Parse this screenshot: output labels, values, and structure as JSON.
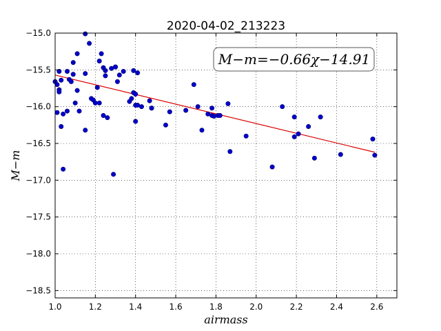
{
  "chart_data": {
    "type": "scatter",
    "title": "2020-04-02_213223",
    "xlabel": "airmass",
    "ylabel": "M−m",
    "xlim": [
      1.0,
      2.7
    ],
    "ylim": [
      -15.0,
      -18.6
    ],
    "y_inverted": true,
    "grid": true,
    "x_ticks": [
      "1.0",
      "1.2",
      "1.4",
      "1.6",
      "1.8",
      "2.0",
      "2.2",
      "2.4",
      "2.6"
    ],
    "y_ticks": [
      "−15.0",
      "−15.5",
      "−16.0",
      "−16.5",
      "−17.0",
      "−17.5",
      "−18.0",
      "−18.5"
    ],
    "annotation": "M−m=−0.66χ−14.91",
    "point_color": "#0000cc",
    "fit_color": "#dd0000",
    "fit": {
      "slope": -0.66,
      "intercept": -14.91,
      "x_range": [
        1.0,
        2.59
      ]
    },
    "points": [
      [
        1.0,
        -15.66
      ],
      [
        1.01,
        -15.7
      ],
      [
        1.02,
        -15.52
      ],
      [
        1.02,
        -15.77
      ],
      [
        1.02,
        -15.8
      ],
      [
        1.01,
        -16.08
      ],
      [
        1.03,
        -16.27
      ],
      [
        1.03,
        -15.64
      ],
      [
        1.04,
        -16.1
      ],
      [
        1.04,
        -16.85
      ],
      [
        1.06,
        -15.52
      ],
      [
        1.06,
        -16.06
      ],
      [
        1.07,
        -15.63
      ],
      [
        1.08,
        -15.66
      ],
      [
        1.09,
        -15.56
      ],
      [
        1.09,
        -15.4
      ],
      [
        1.1,
        -15.95
      ],
      [
        1.11,
        -15.78
      ],
      [
        1.11,
        -15.28
      ],
      [
        1.12,
        -16.06
      ],
      [
        1.15,
        -15.01
      ],
      [
        1.15,
        -15.55
      ],
      [
        1.15,
        -16.32
      ],
      [
        1.17,
        -15.14
      ],
      [
        1.18,
        -15.89
      ],
      [
        1.19,
        -15.91
      ],
      [
        1.2,
        -15.95
      ],
      [
        1.21,
        -15.74
      ],
      [
        1.22,
        -15.38
      ],
      [
        1.22,
        -15.95
      ],
      [
        1.23,
        -15.28
      ],
      [
        1.24,
        -15.47
      ],
      [
        1.25,
        -15.51
      ],
      [
        1.25,
        -15.58
      ],
      [
        1.24,
        -16.12
      ],
      [
        1.26,
        -16.15
      ],
      [
        1.28,
        -15.48
      ],
      [
        1.29,
        -16.92
      ],
      [
        1.3,
        -15.46
      ],
      [
        1.3,
        -15.46
      ],
      [
        1.31,
        -15.66
      ],
      [
        1.32,
        -15.57
      ],
      [
        1.34,
        -15.52
      ],
      [
        1.37,
        -15.93
      ],
      [
        1.38,
        -15.89
      ],
      [
        1.39,
        -15.51
      ],
      [
        1.39,
        -15.81
      ],
      [
        1.4,
        -15.83
      ],
      [
        1.4,
        -16.2
      ],
      [
        1.4,
        -15.98
      ],
      [
        1.41,
        -15.98
      ],
      [
        1.41,
        -15.54
      ],
      [
        1.43,
        -16.0
      ],
      [
        1.47,
        -15.92
      ],
      [
        1.48,
        -16.02
      ],
      [
        1.48,
        -16.02
      ],
      [
        1.55,
        -16.25
      ],
      [
        1.57,
        -16.07
      ],
      [
        1.65,
        -16.05
      ],
      [
        1.69,
        -15.7
      ],
      [
        1.71,
        -16.0
      ],
      [
        1.73,
        -16.32
      ],
      [
        1.76,
        -16.1
      ],
      [
        1.78,
        -16.02
      ],
      [
        1.78,
        -16.12
      ],
      [
        1.79,
        -16.13
      ],
      [
        1.81,
        -16.12
      ],
      [
        1.82,
        -16.12
      ],
      [
        1.86,
        -15.96
      ],
      [
        1.87,
        -16.61
      ],
      [
        1.95,
        -16.4
      ],
      [
        2.08,
        -16.82
      ],
      [
        2.13,
        -16.0
      ],
      [
        2.19,
        -16.14
      ],
      [
        2.19,
        -16.41
      ],
      [
        2.21,
        -16.37
      ],
      [
        2.26,
        -16.27
      ],
      [
        2.29,
        -16.7
      ],
      [
        2.32,
        -16.14
      ],
      [
        2.42,
        -16.65
      ],
      [
        2.58,
        -16.44
      ],
      [
        2.59,
        -16.66
      ]
    ]
  }
}
